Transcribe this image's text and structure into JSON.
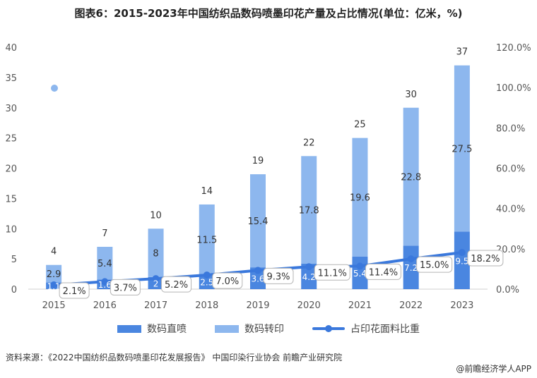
{
  "title": "图表6：2015-2023年中国纺织品数码喷墨印花产量及占比情况(单位：亿米，%)",
  "source": "资料来源：《2022中国纺织品数码喷墨印花发展报告》 中国印染行业协会 前瞻产业研究院",
  "credit": "@前瞻经济学人APP",
  "colors": {
    "direct": "#4a86e0",
    "transfer": "#8db7ee",
    "line": "#3a78dc"
  },
  "chart_data": {
    "type": "bar",
    "stacked": true,
    "categories": [
      "2015",
      "2016",
      "2017",
      "2018",
      "2019",
      "2020",
      "2021",
      "2022",
      "2023"
    ],
    "series": [
      {
        "name": "数码直喷",
        "values": [
          1.1,
          1.6,
          2,
          2.5,
          3.6,
          4.2,
          5.4,
          7.2,
          9.5
        ],
        "labels": [
          "1.1",
          "1.6",
          "2",
          "2.5",
          "3.6",
          "4.2",
          "5.4",
          "7.2",
          "9.5"
        ]
      },
      {
        "name": "数码转印",
        "values": [
          2.9,
          5.4,
          8,
          11.5,
          15.4,
          17.8,
          19.6,
          22.8,
          27.5
        ],
        "labels": [
          "2.9",
          "5.4",
          "8",
          "11.5",
          "15.4",
          "17.8",
          "19.6",
          "22.8",
          "27.5"
        ]
      }
    ],
    "totals": {
      "values": [
        4,
        7,
        10,
        14,
        19,
        22,
        25,
        30,
        37
      ],
      "labels": [
        "4",
        "7",
        "10",
        "14",
        "19",
        "22",
        "25",
        "30",
        "37"
      ]
    },
    "line": {
      "name": "占印花面料比重",
      "axis": "right",
      "values": [
        2.1,
        3.7,
        5.2,
        7.0,
        9.3,
        11.1,
        11.4,
        15.0,
        18.2
      ],
      "labels": [
        "2.1%",
        "3.7%",
        "5.2%",
        "7.0%",
        "9.3%",
        "11.1%",
        "11.4%",
        "15.0%",
        "18.2%"
      ]
    },
    "y_left": {
      "min": 0,
      "max": 40,
      "ticks": [
        "0",
        "5",
        "10",
        "15",
        "20",
        "25",
        "30",
        "35",
        "40"
      ]
    },
    "y_right": {
      "min": 0,
      "max": 120,
      "ticks": [
        "0.0%",
        "20.0%",
        "40.0%",
        "60.0%",
        "80.0%",
        "100.0%",
        "120.0%"
      ]
    },
    "grid": false,
    "legend_position": "bottom"
  }
}
